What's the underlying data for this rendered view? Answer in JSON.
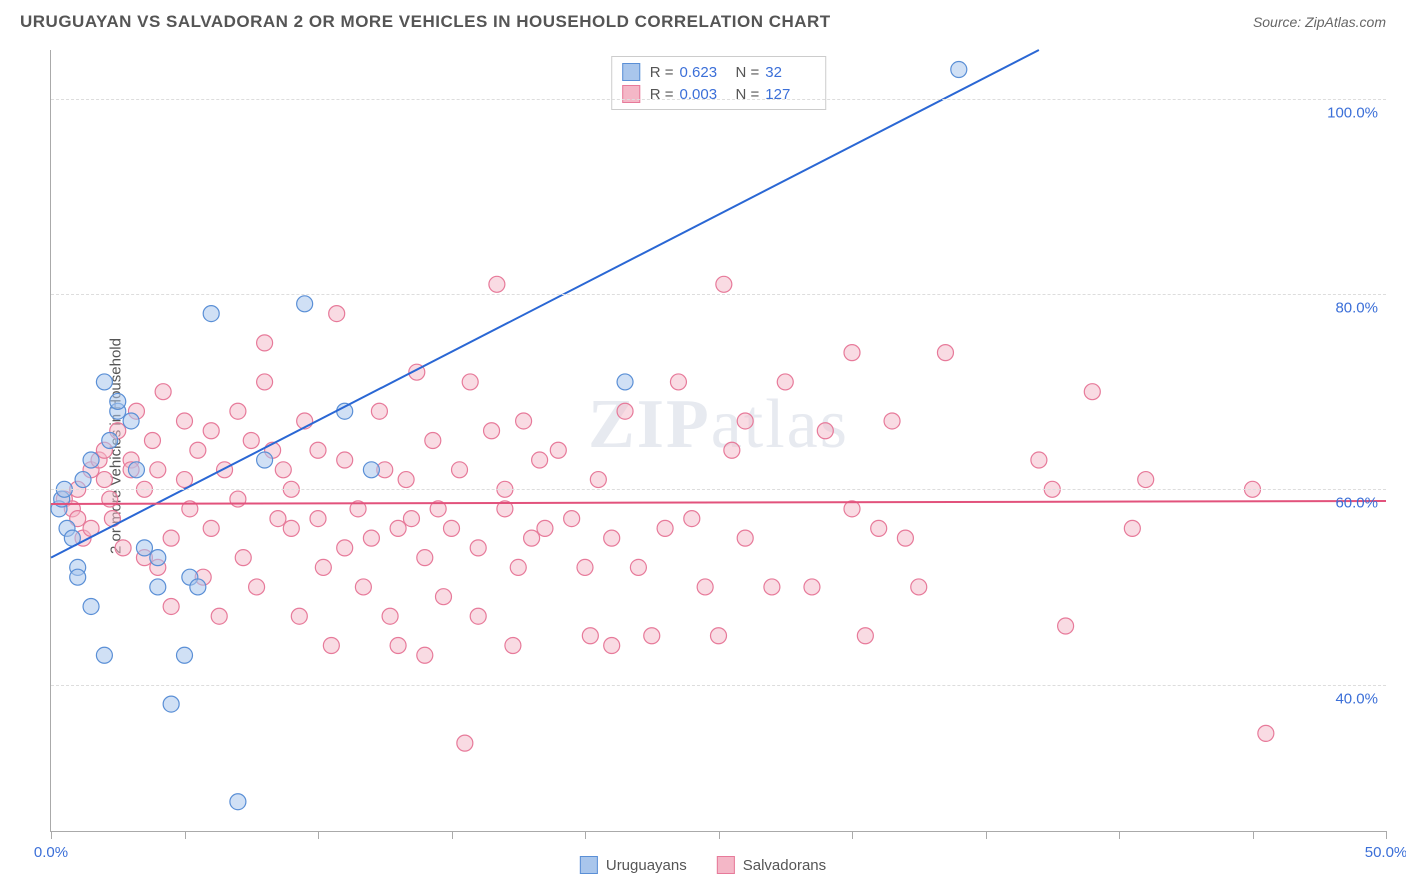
{
  "header": {
    "title": "URUGUAYAN VS SALVADORAN 2 OR MORE VEHICLES IN HOUSEHOLD CORRELATION CHART",
    "source_label": "Source:",
    "source_value": "ZipAtlas.com"
  },
  "chart": {
    "type": "scatter",
    "ylabel": "2 or more Vehicles in Household",
    "xlim": [
      0,
      50
    ],
    "ylim": [
      25,
      105
    ],
    "x_ticks": [
      0,
      5,
      10,
      15,
      20,
      25,
      30,
      35,
      40,
      45,
      50
    ],
    "x_tick_labels": {
      "0": "0.0%",
      "50": "50.0%"
    },
    "y_gridlines": [
      40,
      60,
      80,
      100
    ],
    "y_tick_labels": [
      "40.0%",
      "60.0%",
      "80.0%",
      "100.0%"
    ],
    "background_color": "#ffffff",
    "grid_color": "#dddddd",
    "axis_color": "#aaaaaa",
    "tick_label_color": "#3b6fd8",
    "series": {
      "uruguayans": {
        "label": "Uruguayans",
        "fill": "#a9c6ec",
        "stroke": "#5a8fd6",
        "fill_opacity": 0.55,
        "R": "0.623",
        "N": "32",
        "trend": {
          "x1": 0,
          "y1": 53,
          "x2": 37,
          "y2": 105,
          "color": "#2a67d4",
          "width": 2
        },
        "points": [
          [
            0.3,
            58
          ],
          [
            0.4,
            59
          ],
          [
            0.5,
            60
          ],
          [
            0.6,
            56
          ],
          [
            0.8,
            55
          ],
          [
            1,
            52
          ],
          [
            1,
            51
          ],
          [
            1.2,
            61
          ],
          [
            1.5,
            63
          ],
          [
            1.5,
            48
          ],
          [
            2,
            43
          ],
          [
            2,
            71
          ],
          [
            2.2,
            65
          ],
          [
            2.5,
            68
          ],
          [
            2.5,
            69
          ],
          [
            3,
            67
          ],
          [
            3.2,
            62
          ],
          [
            3.5,
            54
          ],
          [
            4,
            53
          ],
          [
            4,
            50
          ],
          [
            4.5,
            38
          ],
          [
            5,
            43
          ],
          [
            5.2,
            51
          ],
          [
            5.5,
            50
          ],
          [
            6,
            78
          ],
          [
            7,
            28
          ],
          [
            8,
            63
          ],
          [
            9.5,
            79
          ],
          [
            11,
            68
          ],
          [
            12,
            62
          ],
          [
            21.5,
            71
          ],
          [
            34,
            103
          ]
        ]
      },
      "salvadorans": {
        "label": "Salvadorans",
        "fill": "#f4b7c7",
        "stroke": "#e77a9a",
        "fill_opacity": 0.5,
        "R": "0.003",
        "N": "127",
        "trend": {
          "x1": 0,
          "y1": 58.5,
          "x2": 50,
          "y2": 58.8,
          "color": "#e2527c",
          "width": 2
        },
        "points": [
          [
            0.5,
            59
          ],
          [
            0.8,
            58
          ],
          [
            1,
            60
          ],
          [
            1,
            57
          ],
          [
            1.2,
            55
          ],
          [
            1.5,
            62
          ],
          [
            1.5,
            56
          ],
          [
            1.8,
            63
          ],
          [
            2,
            61
          ],
          [
            2,
            64
          ],
          [
            2.2,
            59
          ],
          [
            2.3,
            57
          ],
          [
            2.5,
            66
          ],
          [
            2.7,
            54
          ],
          [
            3,
            63
          ],
          [
            3,
            62
          ],
          [
            3.2,
            68
          ],
          [
            3.5,
            60
          ],
          [
            3.5,
            53
          ],
          [
            3.8,
            65
          ],
          [
            4,
            62
          ],
          [
            4,
            52
          ],
          [
            4.2,
            70
          ],
          [
            4.5,
            55
          ],
          [
            4.5,
            48
          ],
          [
            5,
            67
          ],
          [
            5,
            61
          ],
          [
            5.2,
            58
          ],
          [
            5.5,
            64
          ],
          [
            5.7,
            51
          ],
          [
            6,
            66
          ],
          [
            6,
            56
          ],
          [
            6.3,
            47
          ],
          [
            6.5,
            62
          ],
          [
            7,
            68
          ],
          [
            7,
            59
          ],
          [
            7.2,
            53
          ],
          [
            7.5,
            65
          ],
          [
            7.7,
            50
          ],
          [
            8,
            75
          ],
          [
            8,
            71
          ],
          [
            8.3,
            64
          ],
          [
            8.5,
            57
          ],
          [
            8.7,
            62
          ],
          [
            9,
            56
          ],
          [
            9,
            60
          ],
          [
            9.3,
            47
          ],
          [
            9.5,
            67
          ],
          [
            10,
            64
          ],
          [
            10,
            57
          ],
          [
            10.2,
            52
          ],
          [
            10.5,
            44
          ],
          [
            10.7,
            78
          ],
          [
            11,
            63
          ],
          [
            11,
            54
          ],
          [
            11.5,
            58
          ],
          [
            11.7,
            50
          ],
          [
            12,
            55
          ],
          [
            12.3,
            68
          ],
          [
            12.5,
            62
          ],
          [
            12.7,
            47
          ],
          [
            13,
            56
          ],
          [
            13,
            44
          ],
          [
            13.3,
            61
          ],
          [
            13.5,
            57
          ],
          [
            13.7,
            72
          ],
          [
            14,
            43
          ],
          [
            14,
            53
          ],
          [
            14.3,
            65
          ],
          [
            14.5,
            58
          ],
          [
            14.7,
            49
          ],
          [
            15,
            56
          ],
          [
            15.3,
            62
          ],
          [
            15.5,
            34
          ],
          [
            15.7,
            71
          ],
          [
            16,
            54
          ],
          [
            16,
            47
          ],
          [
            16.5,
            66
          ],
          [
            16.7,
            81
          ],
          [
            17,
            60
          ],
          [
            17,
            58
          ],
          [
            17.3,
            44
          ],
          [
            17.5,
            52
          ],
          [
            17.7,
            67
          ],
          [
            18,
            55
          ],
          [
            18.3,
            63
          ],
          [
            18.5,
            56
          ],
          [
            19,
            64
          ],
          [
            19.5,
            57
          ],
          [
            20,
            52
          ],
          [
            20.2,
            45
          ],
          [
            20.5,
            61
          ],
          [
            21,
            55
          ],
          [
            21,
            44
          ],
          [
            21.5,
            68
          ],
          [
            22,
            52
          ],
          [
            22.5,
            45
          ],
          [
            23,
            56
          ],
          [
            23.5,
            71
          ],
          [
            24,
            57
          ],
          [
            24.5,
            50
          ],
          [
            25,
            45
          ],
          [
            25.2,
            81
          ],
          [
            25.5,
            64
          ],
          [
            26,
            55
          ],
          [
            26,
            67
          ],
          [
            27,
            50
          ],
          [
            27.5,
            71
          ],
          [
            28.5,
            50
          ],
          [
            29,
            66
          ],
          [
            30,
            74
          ],
          [
            30,
            58
          ],
          [
            30.5,
            45
          ],
          [
            31,
            56
          ],
          [
            31.5,
            67
          ],
          [
            32,
            55
          ],
          [
            32.5,
            50
          ],
          [
            33.5,
            74
          ],
          [
            37,
            63
          ],
          [
            37.5,
            60
          ],
          [
            38,
            46
          ],
          [
            39,
            70
          ],
          [
            40.5,
            56
          ],
          [
            41,
            61
          ],
          [
            45,
            60
          ],
          [
            45.5,
            35
          ]
        ]
      }
    },
    "watermark": "ZIPatlas"
  },
  "legend_bottom": {
    "items": [
      "Uruguayans",
      "Salvadorans"
    ]
  }
}
